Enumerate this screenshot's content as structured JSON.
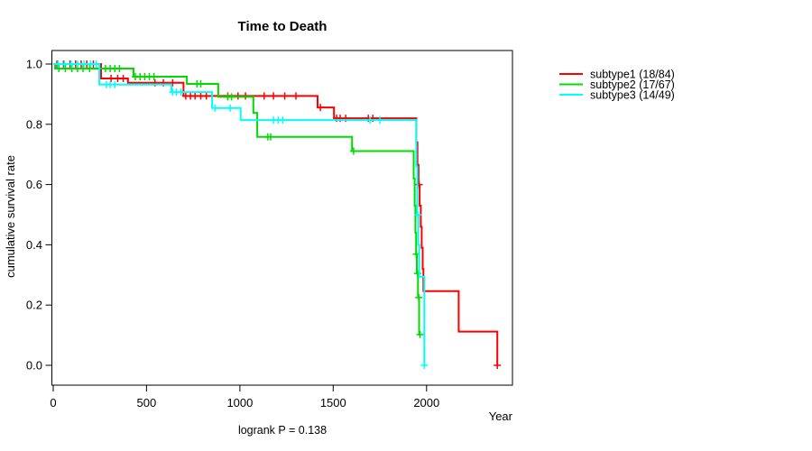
{
  "chart_data": {
    "type": "line",
    "variant": "kaplan-meier-step",
    "title": "Time to Death",
    "xlabel": "Year",
    "ylabel": "cumulative survival rate",
    "footnote": "logrank P = 0.138",
    "xlim": [
      0,
      2460
    ],
    "ylim": [
      0.0,
      1.0
    ],
    "x_ticks": [
      0,
      500,
      1000,
      1500,
      2000
    ],
    "x_tick_labels": [
      "0",
      "500",
      "1000",
      "1500",
      "2000"
    ],
    "y_ticks": [
      0.0,
      0.2,
      0.4,
      0.6,
      0.8,
      1.0
    ],
    "y_tick_labels": [
      "0.0",
      "0.2",
      "0.4",
      "0.6",
      "0.8",
      "1.0"
    ],
    "grid": false,
    "legend_position": "right-outside",
    "legend": [
      {
        "label": "subtype1 (18/84)",
        "color": "#FF0000"
      },
      {
        "label": "subtype2 (17/67)",
        "color": "#00DC00"
      },
      {
        "label": "subtype3 (14/49)",
        "color": "#00FFFF"
      }
    ],
    "series": [
      {
        "name": "subtype1 (18/84)",
        "color": "#FF0000",
        "points": [
          [
            0,
            1.0
          ],
          [
            256,
            1.0
          ],
          [
            256,
            0.952
          ],
          [
            400,
            0.952
          ],
          [
            400,
            0.938
          ],
          [
            698,
            0.938
          ],
          [
            698,
            0.894
          ],
          [
            1416,
            0.894
          ],
          [
            1416,
            0.856
          ],
          [
            1504,
            0.856
          ],
          [
            1504,
            0.82
          ],
          [
            1945,
            0.82
          ],
          [
            1945,
            0.74
          ],
          [
            1951,
            0.74
          ],
          [
            1951,
            0.665
          ],
          [
            1957,
            0.665
          ],
          [
            1957,
            0.6
          ],
          [
            1963,
            0.6
          ],
          [
            1963,
            0.53
          ],
          [
            1969,
            0.53
          ],
          [
            1969,
            0.46
          ],
          [
            1974,
            0.46
          ],
          [
            1974,
            0.39
          ],
          [
            1979,
            0.39
          ],
          [
            1979,
            0.32
          ],
          [
            1983,
            0.32
          ],
          [
            1983,
            0.246
          ],
          [
            2172,
            0.246
          ],
          [
            2172,
            0.112
          ],
          [
            2379,
            0.112
          ],
          [
            2379,
            0.0
          ]
        ],
        "censors": [
          [
            20,
            1.0
          ],
          [
            55,
            1.0
          ],
          [
            90,
            1.0
          ],
          [
            120,
            1.0
          ],
          [
            150,
            1.0
          ],
          [
            180,
            1.0
          ],
          [
            215,
            1.0
          ],
          [
            310,
            0.952
          ],
          [
            345,
            0.952
          ],
          [
            375,
            0.952
          ],
          [
            545,
            0.938
          ],
          [
            590,
            0.938
          ],
          [
            640,
            0.938
          ],
          [
            710,
            0.894
          ],
          [
            735,
            0.894
          ],
          [
            760,
            0.894
          ],
          [
            790,
            0.894
          ],
          [
            820,
            0.894
          ],
          [
            850,
            0.894
          ],
          [
            935,
            0.894
          ],
          [
            990,
            0.894
          ],
          [
            1030,
            0.894
          ],
          [
            1130,
            0.894
          ],
          [
            1180,
            0.894
          ],
          [
            1240,
            0.894
          ],
          [
            1300,
            0.894
          ],
          [
            1431,
            0.856
          ],
          [
            1518,
            0.82
          ],
          [
            1537,
            0.82
          ],
          [
            1567,
            0.82
          ],
          [
            1688,
            0.82
          ],
          [
            1712,
            0.82
          ],
          [
            1960,
            0.6
          ],
          [
            2379,
            0.0
          ]
        ]
      },
      {
        "name": "subtype2 (17/67)",
        "color": "#00DC00",
        "points": [
          [
            0,
            1.0
          ],
          [
            10,
            1.0
          ],
          [
            10,
            0.985
          ],
          [
            430,
            0.985
          ],
          [
            430,
            0.958
          ],
          [
            716,
            0.958
          ],
          [
            716,
            0.934
          ],
          [
            884,
            0.934
          ],
          [
            884,
            0.891
          ],
          [
            1072,
            0.891
          ],
          [
            1072,
            0.838
          ],
          [
            1093,
            0.838
          ],
          [
            1093,
            0.758
          ],
          [
            1601,
            0.758
          ],
          [
            1601,
            0.711
          ],
          [
            1931,
            0.711
          ],
          [
            1931,
            0.62
          ],
          [
            1936,
            0.62
          ],
          [
            1936,
            0.53
          ],
          [
            1940,
            0.53
          ],
          [
            1940,
            0.44
          ],
          [
            1944,
            0.44
          ],
          [
            1944,
            0.369
          ],
          [
            1948,
            0.369
          ],
          [
            1948,
            0.305
          ],
          [
            1954,
            0.305
          ],
          [
            1954,
            0.225
          ],
          [
            1960,
            0.225
          ],
          [
            1960,
            0.102
          ],
          [
            1965,
            0.102
          ]
        ],
        "censors": [
          [
            30,
            0.985
          ],
          [
            65,
            0.985
          ],
          [
            100,
            0.985
          ],
          [
            130,
            0.985
          ],
          [
            160,
            0.985
          ],
          [
            195,
            0.985
          ],
          [
            280,
            0.985
          ],
          [
            305,
            0.985
          ],
          [
            330,
            0.985
          ],
          [
            355,
            0.985
          ],
          [
            440,
            0.958
          ],
          [
            465,
            0.958
          ],
          [
            490,
            0.958
          ],
          [
            515,
            0.958
          ],
          [
            540,
            0.958
          ],
          [
            770,
            0.934
          ],
          [
            790,
            0.934
          ],
          [
            935,
            0.891
          ],
          [
            955,
            0.891
          ],
          [
            1150,
            0.758
          ],
          [
            1165,
            0.758
          ],
          [
            1609,
            0.711
          ],
          [
            1945,
            0.369
          ],
          [
            1952,
            0.305
          ],
          [
            1958,
            0.225
          ],
          [
            1965,
            0.102
          ]
        ]
      },
      {
        "name": "subtype3 (14/49)",
        "color": "#00FFFF",
        "points": [
          [
            0,
            1.0
          ],
          [
            247,
            1.0
          ],
          [
            247,
            0.932
          ],
          [
            633,
            0.932
          ],
          [
            633,
            0.907
          ],
          [
            851,
            0.907
          ],
          [
            851,
            0.854
          ],
          [
            1004,
            0.854
          ],
          [
            1004,
            0.814
          ],
          [
            1945,
            0.814
          ],
          [
            1945,
            0.66
          ],
          [
            1950,
            0.66
          ],
          [
            1950,
            0.5
          ],
          [
            1956,
            0.5
          ],
          [
            1956,
            0.4
          ],
          [
            1961,
            0.4
          ],
          [
            1961,
            0.294
          ],
          [
            1988,
            0.294
          ],
          [
            1988,
            0.0
          ]
        ],
        "censors": [
          [
            25,
            1.0
          ],
          [
            60,
            1.0
          ],
          [
            95,
            1.0
          ],
          [
            130,
            1.0
          ],
          [
            165,
            1.0
          ],
          [
            200,
            1.0
          ],
          [
            230,
            1.0
          ],
          [
            285,
            0.932
          ],
          [
            305,
            0.932
          ],
          [
            330,
            0.932
          ],
          [
            640,
            0.907
          ],
          [
            660,
            0.907
          ],
          [
            685,
            0.907
          ],
          [
            866,
            0.854
          ],
          [
            948,
            0.854
          ],
          [
            1180,
            0.814
          ],
          [
            1205,
            0.814
          ],
          [
            1230,
            0.814
          ],
          [
            1697,
            0.814
          ],
          [
            1750,
            0.814
          ],
          [
            1953,
            0.5
          ],
          [
            1988,
            0.0
          ]
        ]
      }
    ]
  }
}
